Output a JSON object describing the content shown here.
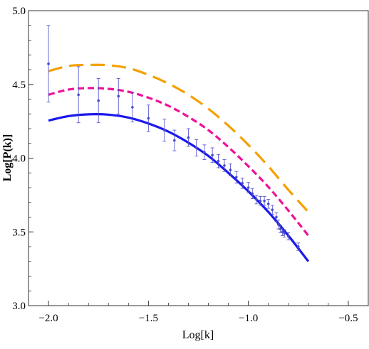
{
  "chart_data": {
    "type": "line",
    "title": "",
    "xlabel": "Log[k]",
    "ylabel": "Log[P(k)]",
    "xlim": [
      -2.1,
      -0.4
    ],
    "ylim": [
      3.0,
      5.0
    ],
    "xticks": [
      -2.0,
      -1.5,
      -1.0,
      -0.5
    ],
    "xtick_labels": [
      "−2.0",
      "−1.5",
      "−1.0",
      "−0.5"
    ],
    "yticks": [
      3.0,
      3.5,
      4.0,
      4.5,
      5.0
    ],
    "ytick_labels": [
      "3.0",
      "3.5",
      "4.0",
      "4.5",
      "5.0"
    ],
    "grid": false,
    "series": [
      {
        "style": "dashed-long",
        "color": "#f5a000",
        "points": [
          [
            -2.0,
            4.59
          ],
          [
            -1.9,
            4.625
          ],
          [
            -1.8,
            4.632
          ],
          [
            -1.7,
            4.63
          ],
          [
            -1.6,
            4.61
          ],
          [
            -1.5,
            4.565
          ],
          [
            -1.4,
            4.505
          ],
          [
            -1.3,
            4.43
          ],
          [
            -1.2,
            4.335
          ],
          [
            -1.1,
            4.22
          ],
          [
            -1.0,
            4.09
          ],
          [
            -0.9,
            3.945
          ],
          [
            -0.8,
            3.785
          ],
          [
            -0.7,
            3.635
          ]
        ]
      },
      {
        "style": "dashed-short",
        "color": "#ee1199",
        "points": [
          [
            -2.0,
            4.43
          ],
          [
            -1.9,
            4.465
          ],
          [
            -1.8,
            4.475
          ],
          [
            -1.7,
            4.47
          ],
          [
            -1.6,
            4.45
          ],
          [
            -1.5,
            4.41
          ],
          [
            -1.4,
            4.355
          ],
          [
            -1.3,
            4.28
          ],
          [
            -1.2,
            4.19
          ],
          [
            -1.1,
            4.075
          ],
          [
            -1.0,
            3.945
          ],
          [
            -0.9,
            3.805
          ],
          [
            -0.8,
            3.645
          ],
          [
            -0.7,
            3.475
          ]
        ]
      },
      {
        "style": "solid",
        "color": "#1a18ee",
        "points": [
          [
            -2.0,
            4.255
          ],
          [
            -1.9,
            4.285
          ],
          [
            -1.8,
            4.297
          ],
          [
            -1.7,
            4.295
          ],
          [
            -1.6,
            4.275
          ],
          [
            -1.5,
            4.235
          ],
          [
            -1.4,
            4.18
          ],
          [
            -1.3,
            4.105
          ],
          [
            -1.2,
            4.015
          ],
          [
            -1.1,
            3.9
          ],
          [
            -1.0,
            3.775
          ],
          [
            -0.9,
            3.635
          ],
          [
            -0.8,
            3.475
          ],
          [
            -0.7,
            3.3
          ]
        ]
      }
    ],
    "errorbar_series": {
      "color": "#4a4acc",
      "points": [
        {
          "x": -2.0,
          "y": 4.64,
          "err": 0.26
        },
        {
          "x": -1.85,
          "y": 4.43,
          "err": 0.19
        },
        {
          "x": -1.75,
          "y": 4.39,
          "err": 0.15
        },
        {
          "x": -1.65,
          "y": 4.42,
          "err": 0.12
        },
        {
          "x": -1.58,
          "y": 4.345,
          "err": 0.1
        },
        {
          "x": -1.5,
          "y": 4.27,
          "err": 0.09
        },
        {
          "x": -1.42,
          "y": 4.19,
          "err": 0.075
        },
        {
          "x": -1.37,
          "y": 4.12,
          "err": 0.07
        },
        {
          "x": -1.3,
          "y": 4.14,
          "err": 0.06
        },
        {
          "x": -1.26,
          "y": 4.07,
          "err": 0.055
        },
        {
          "x": -1.22,
          "y": 4.04,
          "err": 0.05
        },
        {
          "x": -1.18,
          "y": 4.02,
          "err": 0.05
        },
        {
          "x": -1.15,
          "y": 3.98,
          "err": 0.045
        },
        {
          "x": -1.12,
          "y": 3.95,
          "err": 0.04
        },
        {
          "x": -1.09,
          "y": 3.92,
          "err": 0.04
        },
        {
          "x": -1.06,
          "y": 3.87,
          "err": 0.04
        },
        {
          "x": -1.03,
          "y": 3.83,
          "err": 0.035
        },
        {
          "x": -1.0,
          "y": 3.8,
          "err": 0.035
        },
        {
          "x": -0.98,
          "y": 3.76,
          "err": 0.035
        },
        {
          "x": -0.96,
          "y": 3.72,
          "err": 0.03
        },
        {
          "x": -0.94,
          "y": 3.71,
          "err": 0.03
        },
        {
          "x": -0.92,
          "y": 3.71,
          "err": 0.03
        },
        {
          "x": -0.9,
          "y": 3.69,
          "err": 0.03
        },
        {
          "x": -0.88,
          "y": 3.65,
          "err": 0.03
        },
        {
          "x": -0.86,
          "y": 3.6,
          "err": 0.03
        },
        {
          "x": -0.85,
          "y": 3.55,
          "err": 0.03
        },
        {
          "x": -0.84,
          "y": 3.52,
          "err": 0.025
        },
        {
          "x": -0.83,
          "y": 3.5,
          "err": 0.025
        },
        {
          "x": -0.82,
          "y": 3.49,
          "err": 0.025
        },
        {
          "x": -0.8,
          "y": 3.47,
          "err": 0.025
        },
        {
          "x": -0.75,
          "y": 3.4,
          "err": 0.025
        }
      ]
    }
  }
}
